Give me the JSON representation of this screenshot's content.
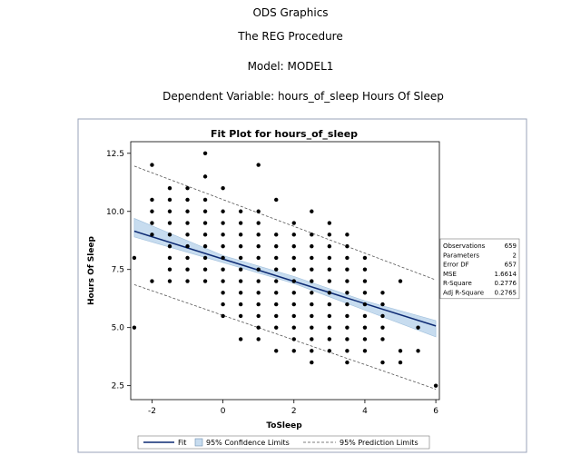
{
  "header": {
    "line1": "ODS Graphics",
    "line2": "The REG Procedure",
    "line3": "Model: MODEL1",
    "line4": "Dependent Variable: hours_of_sleep Hours Of Sleep"
  },
  "chart_data": {
    "type": "scatter",
    "title": "Fit Plot for hours_of_sleep",
    "xlabel": "ToSleep",
    "ylabel": "Hours Of Sleep",
    "xlim": [
      -2.6,
      6.1
    ],
    "ylim": [
      1.9,
      13.0
    ],
    "xticks": [
      -2,
      0,
      2,
      4,
      6
    ],
    "xtick_labels": [
      "-2",
      "0",
      "2",
      "4",
      "6"
    ],
    "yticks": [
      2.5,
      5.0,
      7.5,
      10.0,
      12.5
    ],
    "ytick_labels": [
      "2.5",
      "5.0",
      "7.5",
      "10.0",
      "12.5"
    ],
    "fit": {
      "intercept": 7.95,
      "slope": -0.48
    },
    "confidence_band": [
      {
        "x": -2.5,
        "lower": 8.9,
        "upper": 9.7
      },
      {
        "x": 0,
        "lower": 7.8,
        "upper": 8.1
      },
      {
        "x": 2,
        "lower": 6.9,
        "upper": 7.2
      },
      {
        "x": 4,
        "lower": 5.75,
        "upper": 6.15
      },
      {
        "x": 6,
        "lower": 4.6,
        "upper": 5.3
      }
    ],
    "prediction_limits": {
      "upper": [
        {
          "x": -2.5,
          "y": 11.95
        },
        {
          "x": 6,
          "y": 7.05
        }
      ],
      "lower": [
        {
          "x": -2.5,
          "y": 6.85
        },
        {
          "x": 6,
          "y": 2.35
        }
      ]
    },
    "points": [
      [
        -2.5,
        8.0
      ],
      [
        -2.5,
        5.0
      ],
      [
        -2,
        12.0
      ],
      [
        -2,
        10.5
      ],
      [
        -2,
        10.0
      ],
      [
        -2,
        9.5
      ],
      [
        -2,
        9.0
      ],
      [
        -2,
        7.0
      ],
      [
        -1.5,
        11.0
      ],
      [
        -1.5,
        10.5
      ],
      [
        -1.5,
        10.0
      ],
      [
        -1.5,
        9.5
      ],
      [
        -1.5,
        9.0
      ],
      [
        -1.5,
        8.5
      ],
      [
        -1.5,
        8.0
      ],
      [
        -1.5,
        7.5
      ],
      [
        -1.5,
        7.0
      ],
      [
        -1,
        11.0
      ],
      [
        -1,
        10.5
      ],
      [
        -1,
        10.0
      ],
      [
        -1,
        9.5
      ],
      [
        -1,
        9.0
      ],
      [
        -1,
        8.5
      ],
      [
        -1,
        8.0
      ],
      [
        -1,
        7.5
      ],
      [
        -1,
        7.0
      ],
      [
        -0.5,
        12.5
      ],
      [
        -0.5,
        11.5
      ],
      [
        -0.5,
        10.5
      ],
      [
        -0.5,
        10.0
      ],
      [
        -0.5,
        9.5
      ],
      [
        -0.5,
        9.0
      ],
      [
        -0.5,
        8.5
      ],
      [
        -0.5,
        8.0
      ],
      [
        -0.5,
        7.5
      ],
      [
        -0.5,
        7.0
      ],
      [
        0,
        11.0
      ],
      [
        0,
        10.0
      ],
      [
        0,
        9.5
      ],
      [
        0,
        9.0
      ],
      [
        0,
        8.5
      ],
      [
        0,
        8.0
      ],
      [
        0,
        7.5
      ],
      [
        0,
        7.0
      ],
      [
        0,
        6.5
      ],
      [
        0,
        6.0
      ],
      [
        0,
        5.5
      ],
      [
        0.5,
        10.0
      ],
      [
        0.5,
        9.5
      ],
      [
        0.5,
        9.0
      ],
      [
        0.5,
        8.5
      ],
      [
        0.5,
        8.0
      ],
      [
        0.5,
        7.5
      ],
      [
        0.5,
        7.0
      ],
      [
        0.5,
        6.5
      ],
      [
        0.5,
        6.0
      ],
      [
        0.5,
        5.5
      ],
      [
        0.5,
        4.5
      ],
      [
        1,
        12.0
      ],
      [
        1,
        10.0
      ],
      [
        1,
        9.5
      ],
      [
        1,
        9.0
      ],
      [
        1,
        8.5
      ],
      [
        1,
        8.0
      ],
      [
        1,
        7.5
      ],
      [
        1,
        7.0
      ],
      [
        1,
        6.5
      ],
      [
        1,
        6.0
      ],
      [
        1,
        5.5
      ],
      [
        1,
        5.0
      ],
      [
        1,
        4.5
      ],
      [
        1.5,
        10.5
      ],
      [
        1.5,
        9.0
      ],
      [
        1.5,
        8.5
      ],
      [
        1.5,
        8.0
      ],
      [
        1.5,
        7.5
      ],
      [
        1.5,
        7.0
      ],
      [
        1.5,
        6.5
      ],
      [
        1.5,
        6.0
      ],
      [
        1.5,
        5.5
      ],
      [
        1.5,
        5.0
      ],
      [
        1.5,
        4.0
      ],
      [
        2,
        9.5
      ],
      [
        2,
        9.0
      ],
      [
        2,
        8.5
      ],
      [
        2,
        8.0
      ],
      [
        2,
        7.5
      ],
      [
        2,
        7.0
      ],
      [
        2,
        6.5
      ],
      [
        2,
        6.0
      ],
      [
        2,
        5.5
      ],
      [
        2,
        5.0
      ],
      [
        2,
        4.5
      ],
      [
        2,
        4.0
      ],
      [
        2.5,
        10.0
      ],
      [
        2.5,
        9.0
      ],
      [
        2.5,
        8.5
      ],
      [
        2.5,
        8.0
      ],
      [
        2.5,
        7.5
      ],
      [
        2.5,
        7.0
      ],
      [
        2.5,
        6.5
      ],
      [
        2.5,
        6.0
      ],
      [
        2.5,
        5.5
      ],
      [
        2.5,
        5.0
      ],
      [
        2.5,
        4.5
      ],
      [
        2.5,
        4.0
      ],
      [
        2.5,
        3.5
      ],
      [
        3,
        9.5
      ],
      [
        3,
        9.0
      ],
      [
        3,
        8.5
      ],
      [
        3,
        8.0
      ],
      [
        3,
        7.5
      ],
      [
        3,
        7.0
      ],
      [
        3,
        6.5
      ],
      [
        3,
        6.0
      ],
      [
        3,
        5.5
      ],
      [
        3,
        5.0
      ],
      [
        3,
        4.5
      ],
      [
        3,
        4.0
      ],
      [
        3.5,
        9.0
      ],
      [
        3.5,
        8.5
      ],
      [
        3.5,
        8.0
      ],
      [
        3.5,
        7.5
      ],
      [
        3.5,
        7.0
      ],
      [
        3.5,
        6.5
      ],
      [
        3.5,
        6.0
      ],
      [
        3.5,
        5.5
      ],
      [
        3.5,
        5.0
      ],
      [
        3.5,
        4.5
      ],
      [
        3.5,
        4.0
      ],
      [
        3.5,
        3.5
      ],
      [
        4,
        8.0
      ],
      [
        4,
        7.5
      ],
      [
        4,
        7.0
      ],
      [
        4,
        6.5
      ],
      [
        4,
        6.0
      ],
      [
        4,
        5.5
      ],
      [
        4,
        5.0
      ],
      [
        4,
        4.5
      ],
      [
        4,
        4.0
      ],
      [
        4.5,
        6.5
      ],
      [
        4.5,
        6.0
      ],
      [
        4.5,
        5.5
      ],
      [
        4.5,
        5.0
      ],
      [
        4.5,
        4.5
      ],
      [
        4.5,
        3.5
      ],
      [
        5,
        7.0
      ],
      [
        5,
        4.0
      ],
      [
        5,
        3.5
      ],
      [
        5.5,
        5.0
      ],
      [
        5.5,
        4.0
      ],
      [
        6,
        2.5
      ]
    ],
    "stats": [
      {
        "label": "Observations",
        "value": "659"
      },
      {
        "label": "Parameters",
        "value": "2"
      },
      {
        "label": "Error DF",
        "value": "657"
      },
      {
        "label": "MSE",
        "value": "1.6614"
      },
      {
        "label": "R-Square",
        "value": "0.2776"
      },
      {
        "label": "Adj R-Square",
        "value": "0.2765"
      }
    ],
    "legend": [
      {
        "label": "Fit",
        "style": "line"
      },
      {
        "label": "95% Confidence Limits",
        "style": "band"
      },
      {
        "label": "95% Prediction Limits",
        "style": "dashed"
      }
    ],
    "colors": {
      "fit": "#0d2a73",
      "band_fill": "#c7dcef",
      "band_edge": "#9fbfdc",
      "point": "#000000",
      "frame": "#9aa3b8"
    }
  }
}
